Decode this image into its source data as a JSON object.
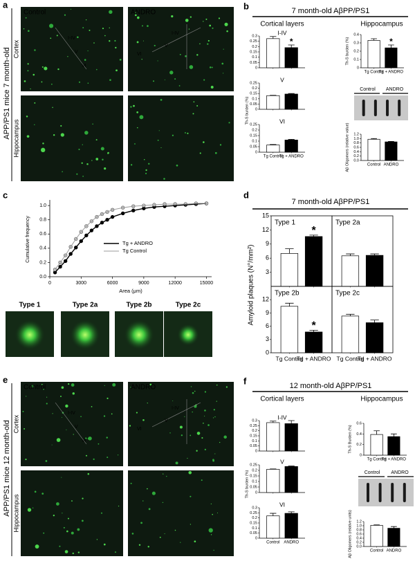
{
  "panels": {
    "a": {
      "label": "a",
      "side_label": "APP/PS1 mice 7 month-old",
      "columns": [
        "Control",
        "ANDRO"
      ],
      "rows": [
        "Cortex",
        "Hippocampus"
      ],
      "layers": [
        "I-IV",
        "V",
        "VI"
      ]
    },
    "b": {
      "label": "b",
      "title": "7 month-old AβPP/PS1",
      "sections": [
        "Cortical layers",
        "Hippocampus"
      ],
      "cortex_y_label": "Th-S burden (%)",
      "blot": [
        "Control",
        "ANDRO"
      ]
    },
    "c": {
      "label": "c",
      "types": [
        "Type 1",
        "Type 2a",
        "Type 2b",
        "Type 2c"
      ]
    },
    "d": {
      "label": "d",
      "title": "7 month-old AβPP/PS1",
      "y_label": "Amyloid plaques (N°/mm²)"
    },
    "e": {
      "label": "e",
      "side_label": "APP/PS1 mice 12 month-old",
      "columns": [
        "Control",
        "ANDRO"
      ],
      "rows": [
        "Cortex",
        "Hippocampus"
      ],
      "layers": [
        "I-IV",
        "V",
        "VI"
      ]
    },
    "f": {
      "label": "f",
      "title": "12 month-old AβPP/PS1",
      "sections": [
        "Cortical layers",
        "Hippocampus"
      ],
      "cortex_y_label": "Th-S burden (%)",
      "blot": [
        "Control",
        "ANDRO"
      ]
    }
  },
  "chart_data": [
    {
      "type": "bar",
      "title": "I-IV",
      "values": [
        0.275,
        0.19
      ],
      "errors": [
        0.02,
        0.025
      ],
      "colors": [
        "#ffffff",
        "#000000"
      ],
      "ylim": [
        0,
        0.3
      ],
      "yticks": [
        0,
        0.05,
        0.1,
        0.15,
        0.2,
        0.25,
        0.3
      ],
      "annotations": [
        {
          "text": "*",
          "index": 1
        }
      ]
    },
    {
      "type": "bar",
      "title": "V",
      "values": [
        0.13,
        0.145
      ],
      "errors": [
        0.003,
        0.005
      ],
      "colors": [
        "#ffffff",
        "#000000"
      ],
      "ylim": [
        0,
        0.25
      ],
      "yticks": [
        0,
        0.05,
        0.1,
        0.15,
        0.2,
        0.25
      ]
    },
    {
      "type": "bar",
      "title": "VI",
      "categories": [
        "Tg Control",
        "Tg + ANDRO"
      ],
      "values": [
        0.065,
        0.11
      ],
      "errors": [
        0.004,
        0.006
      ],
      "colors": [
        "#ffffff",
        "#000000"
      ],
      "ylim": [
        0,
        0.25
      ],
      "yticks": [
        0,
        0.05,
        0.1,
        0.15,
        0.2,
        0.25
      ]
    },
    {
      "type": "bar",
      "y_label": "Th-S burden (%)",
      "categories": [
        "Tg Control",
        "Tg + ANDRO"
      ],
      "values": [
        0.33,
        0.24
      ],
      "errors": [
        0.02,
        0.035
      ],
      "colors": [
        "#ffffff",
        "#000000"
      ],
      "ylim": [
        0,
        0.4
      ],
      "yticks": [
        0,
        0.1,
        0.2,
        0.3,
        0.4
      ],
      "annotations": [
        {
          "text": "*",
          "index": 1
        }
      ]
    },
    {
      "type": "bar",
      "y_label": "Aβ Oligomers (relative value)",
      "categories": [
        "Control",
        "ANDRO"
      ],
      "values": [
        0.97,
        0.85
      ],
      "errors": [
        0.03,
        0.02
      ],
      "colors": [
        "#ffffff",
        "#000000"
      ],
      "ylim": [
        0,
        1.2
      ],
      "yticks": [
        {
          "value": 0,
          "label": "0.0"
        },
        0.2,
        0.4,
        0.6,
        0.8,
        {
          "value": 1,
          "label": "1.0"
        },
        1.2
      ]
    },
    {
      "type": "line",
      "y_label": "Cumulative frequency",
      "x_label": "Area (μm)",
      "x": [
        500,
        1000,
        1500,
        2000,
        2500,
        3000,
        3500,
        4000,
        4500,
        5000,
        5500,
        6000,
        7000,
        8000,
        9000,
        10000,
        11000,
        12000,
        13000,
        14000,
        15000
      ],
      "series": [
        {
          "name": "Tg + ANDRO",
          "color": "#000000",
          "values": [
            0.06,
            0.14,
            0.22,
            0.32,
            0.41,
            0.5,
            0.58,
            0.65,
            0.71,
            0.76,
            0.8,
            0.84,
            0.89,
            0.93,
            0.96,
            0.98,
            0.99,
            1.0,
            1.01,
            1.02,
            1.03
          ]
        },
        {
          "name": "Tg Control",
          "color": "#999999",
          "values": [
            0.1,
            0.2,
            0.3,
            0.42,
            0.53,
            0.63,
            0.71,
            0.78,
            0.84,
            0.88,
            0.91,
            0.94,
            0.97,
            0.99,
            1.0,
            1.01,
            1.02,
            1.02,
            1.02,
            1.03,
            1.03
          ]
        }
      ],
      "xlim": [
        0,
        15500
      ],
      "xticks": [
        0,
        3000,
        6000,
        9000,
        12000,
        15000
      ],
      "ylim": [
        0,
        1.05
      ],
      "yticks": [
        {
          "value": 0,
          "label": "0.0"
        },
        0.2,
        0.4,
        0.6,
        0.8,
        {
          "value": 1,
          "label": "1.0"
        }
      ]
    },
    {
      "type": "bar",
      "title": "Type 1",
      "values": [
        7,
        10.6
      ],
      "errors": [
        1.0,
        0.3
      ],
      "colors": [
        "#ffffff",
        "#000000"
      ],
      "ylim": [
        0,
        15
      ],
      "yticks": [
        3,
        6,
        9,
        12,
        15
      ],
      "annotations": [
        {
          "text": "*",
          "index": 1
        }
      ]
    },
    {
      "type": "bar",
      "title": "Type 2a",
      "values": [
        6.5,
        6.6
      ],
      "errors": [
        0.4,
        0.3
      ],
      "colors": [
        "#ffffff",
        "#000000"
      ],
      "ylim": [
        0,
        15
      ]
    },
    {
      "type": "bar",
      "title": "Type 2b",
      "categories": [
        "Tg Control",
        "Tg + ANDRO"
      ],
      "values": [
        10.5,
        4.7
      ],
      "errors": [
        0.7,
        0.4
      ],
      "colors": [
        "#ffffff",
        "#000000"
      ],
      "ylim": [
        0,
        15
      ],
      "yticks": [
        0,
        3,
        6,
        9,
        12
      ],
      "annotations": [
        {
          "text": "*",
          "index": 1
        }
      ]
    },
    {
      "type": "bar",
      "title": "Type 2c",
      "categories": [
        "Tg Control",
        "Tg + ANDRO"
      ],
      "values": [
        8.3,
        6.8
      ],
      "errors": [
        0.4,
        0.6
      ],
      "colors": [
        "#ffffff",
        "#000000"
      ],
      "ylim": [
        0,
        15
      ]
    },
    {
      "type": "bar",
      "title": "I-IV",
      "values": [
        0.28,
        0.27
      ],
      "errors": [
        0.015,
        0.03
      ],
      "colors": [
        "#ffffff",
        "#000000"
      ],
      "ylim": [
        0,
        0.3
      ],
      "yticks": [
        0,
        0.05,
        0.1,
        0.15,
        0.2,
        0.25,
        0.3
      ]
    },
    {
      "type": "bar",
      "title": "V",
      "values": [
        0.21,
        0.235
      ],
      "errors": [
        0.003,
        0.005
      ],
      "colors": [
        "#ffffff",
        "#000000"
      ],
      "ylim": [
        0,
        0.25
      ],
      "yticks": [
        0,
        0.05,
        0.1,
        0.15,
        0.2,
        0.25
      ]
    },
    {
      "type": "bar",
      "title": "VI",
      "categories": [
        "Control",
        "ANDRO"
      ],
      "values": [
        0.22,
        0.245
      ],
      "errors": [
        0.025,
        0.015
      ],
      "colors": [
        "#ffffff",
        "#000000"
      ],
      "ylim": [
        0,
        0.3
      ],
      "yticks": [
        0,
        0.05,
        0.1,
        0.15,
        0.2,
        0.25,
        0.3
      ]
    },
    {
      "type": "bar",
      "y_label": "Th-S Burden (%)",
      "categories": [
        "Tg Control",
        "Tg + ANDRO"
      ],
      "values": [
        0.39,
        0.35
      ],
      "errors": [
        0.07,
        0.05
      ],
      "colors": [
        "#ffffff",
        "#000000"
      ],
      "ylim": [
        0,
        0.6
      ],
      "yticks": [
        0,
        0.2,
        0.4,
        0.6
      ]
    },
    {
      "type": "bar",
      "y_label": "Aβ Oligomers (relative units)",
      "categories": [
        "Control",
        "ANDRO"
      ],
      "values": [
        1.02,
        0.88
      ],
      "errors": [
        0.02,
        0.08
      ],
      "colors": [
        "#ffffff",
        "#000000"
      ],
      "ylim": [
        0,
        1.2
      ],
      "yticks": [
        {
          "value": 0,
          "label": "0.0"
        },
        0.2,
        0.4,
        0.6,
        0.8,
        {
          "value": 1,
          "label": "1.0"
        },
        1.2
      ]
    }
  ]
}
